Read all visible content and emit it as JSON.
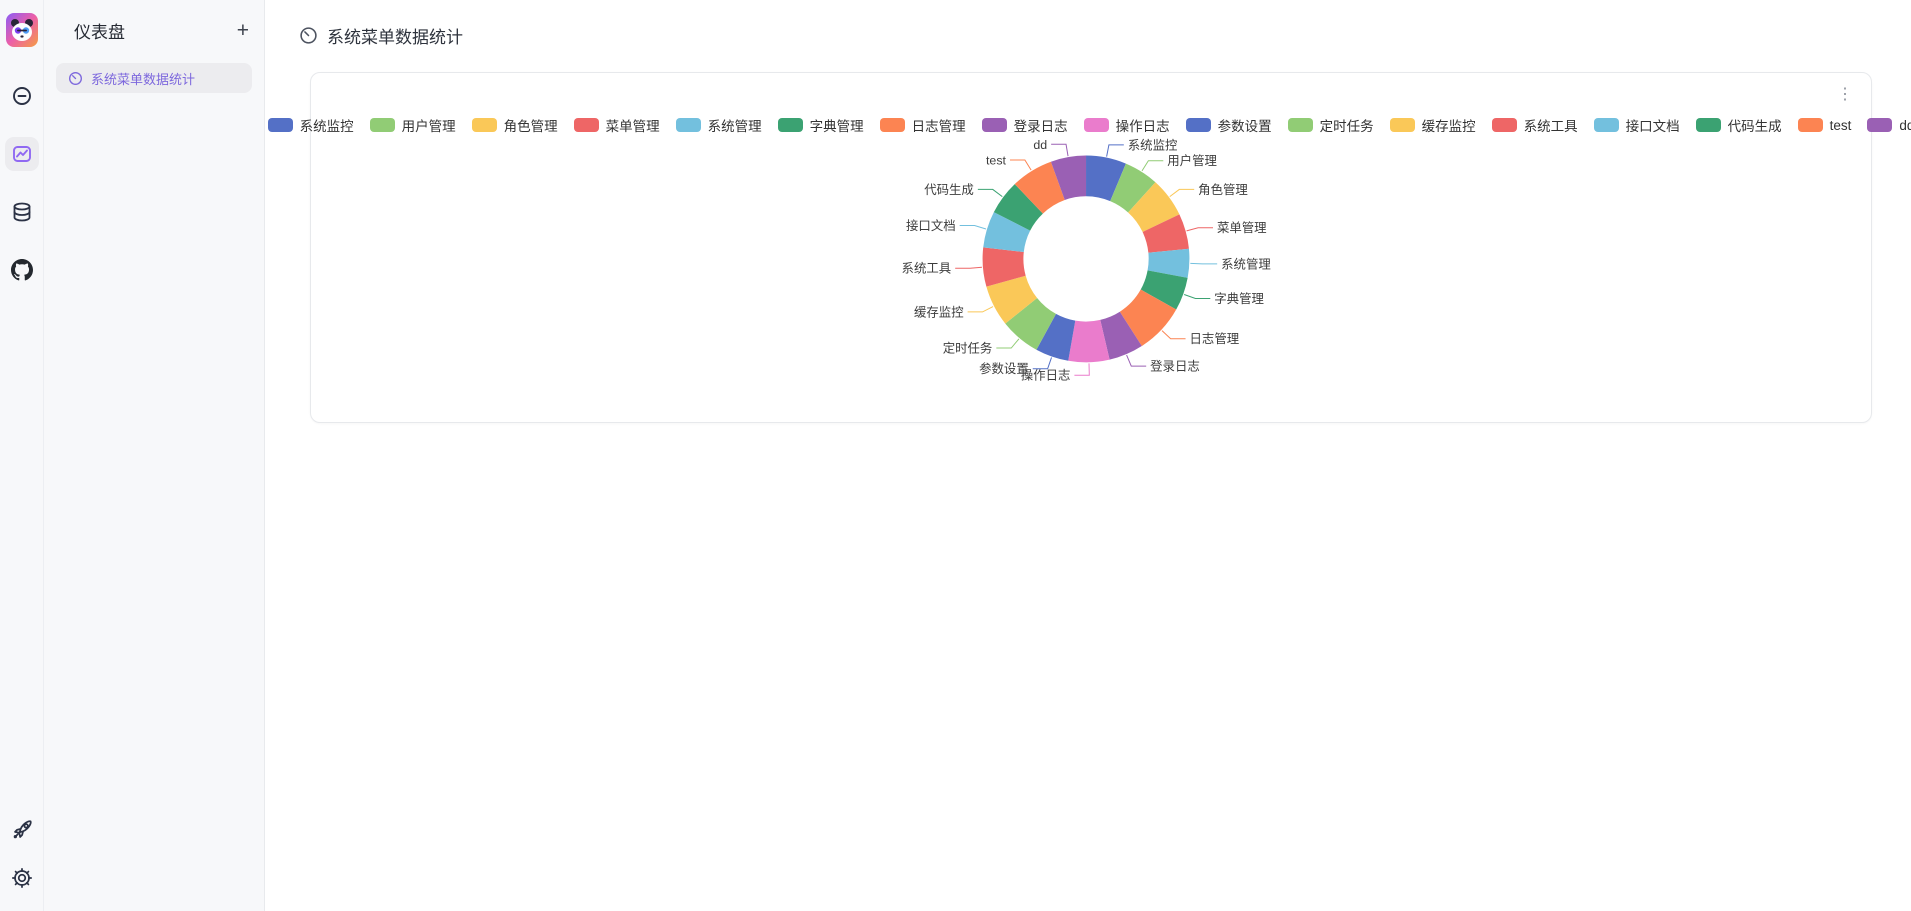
{
  "colors": {
    "accent_purple": "#9069f2",
    "sidebar_active_text": "#7d68dd",
    "rail_icon": "#2b3245",
    "sidebar_bg": "#f7f8fa",
    "card_border": "#e7e9ec",
    "legend_text": "#333333"
  },
  "icon_rail": {
    "logo": "panda-logo",
    "items": [
      {
        "icon": "link-icon",
        "active": false
      },
      {
        "icon": "chart-image-icon",
        "active": true
      },
      {
        "icon": "database-icon",
        "active": false
      },
      {
        "icon": "github-icon",
        "active": false
      }
    ],
    "bottom_items": [
      {
        "icon": "rocket-icon"
      },
      {
        "icon": "settings-gear-icon"
      }
    ]
  },
  "sidebar": {
    "title": "仪表盘",
    "add_button_label": "+",
    "items": [
      {
        "icon": "gauge-icon",
        "label": "系统菜单数据统计",
        "active": true
      }
    ]
  },
  "main": {
    "page_title": "系统菜单数据统计"
  },
  "card": {
    "more_button": "⋮",
    "chart_data": {
      "type": "pie",
      "variant": "donut",
      "title": "",
      "legend_position": "top",
      "label_color": "#3c3c3c",
      "categories": [
        "系统监控",
        "用户管理",
        "角色管理",
        "菜单管理",
        "系统管理",
        "字典管理",
        "日志管理",
        "登录日志",
        "操作日志",
        "参数设置",
        "定时任务",
        "缓存监控",
        "系统工具",
        "接口文档",
        "代码生成",
        "test",
        "dd"
      ],
      "values_pct_estimated": [
        6.3,
        5.4,
        6.2,
        5.5,
        4.5,
        5.2,
        7.8,
        5.4,
        6.4,
        5.2,
        6.3,
        6.4,
        6.1,
        5.7,
        5.4,
        6.6,
        5.5
      ],
      "colors": [
        "#5470c6",
        "#91cc75",
        "#fac858",
        "#ee6666",
        "#73c0de",
        "#3ba272",
        "#fc8452",
        "#9a60b4",
        "#ea7ccc"
      ],
      "label_sides": {
        "操作日志": "left"
      },
      "geometry": {
        "center": [
          776,
          187
        ],
        "inner_radius": 63,
        "outer_radius": 104,
        "elbow": 13,
        "horizontal": 15
      }
    }
  }
}
